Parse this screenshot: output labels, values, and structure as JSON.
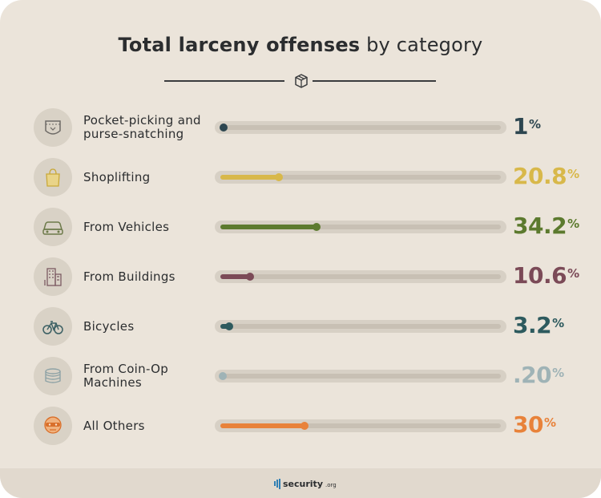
{
  "chart_data": {
    "type": "bar",
    "title_bold": "Total larceny offenses",
    "title_rest": " by category",
    "percent_symbol": "%",
    "xlim": [
      0,
      100
    ],
    "categories": [
      "Pocket-picking and purse-snatching",
      "Shoplifting",
      "From Vehicles",
      "From Buildings",
      "Bicycles",
      "From Coin-Op Machines",
      "All Others"
    ],
    "items": [
      {
        "label": "Pocket-picking and purse-snatching",
        "value": 1,
        "display": "1",
        "color": "#2d4650",
        "icon": "pocket-icon"
      },
      {
        "label": "Shoplifting",
        "value": 20.8,
        "display": "20.8",
        "color": "#d8b84a",
        "icon": "shopping-bag-icon"
      },
      {
        "label": "From Vehicles",
        "value": 34.2,
        "display": "34.2",
        "color": "#5c7a2e",
        "icon": "car-icon"
      },
      {
        "label": "From Buildings",
        "value": 10.6,
        "display": "10.6",
        "color": "#7b4a57",
        "icon": "building-icon"
      },
      {
        "label": "Bicycles",
        "value": 3.2,
        "display": "3.2",
        "color": "#2d5a5e",
        "icon": "bicycle-icon"
      },
      {
        "label": "From Coin-Op Machines",
        "value": 0.2,
        "display": ".20",
        "color": "#9fb3b6",
        "icon": "coins-icon"
      },
      {
        "label": "All Others",
        "value": 30,
        "display": "30",
        "color": "#e8823a",
        "icon": "burglar-icon"
      }
    ]
  },
  "branding": {
    "name": "security",
    "tld": ".org"
  }
}
